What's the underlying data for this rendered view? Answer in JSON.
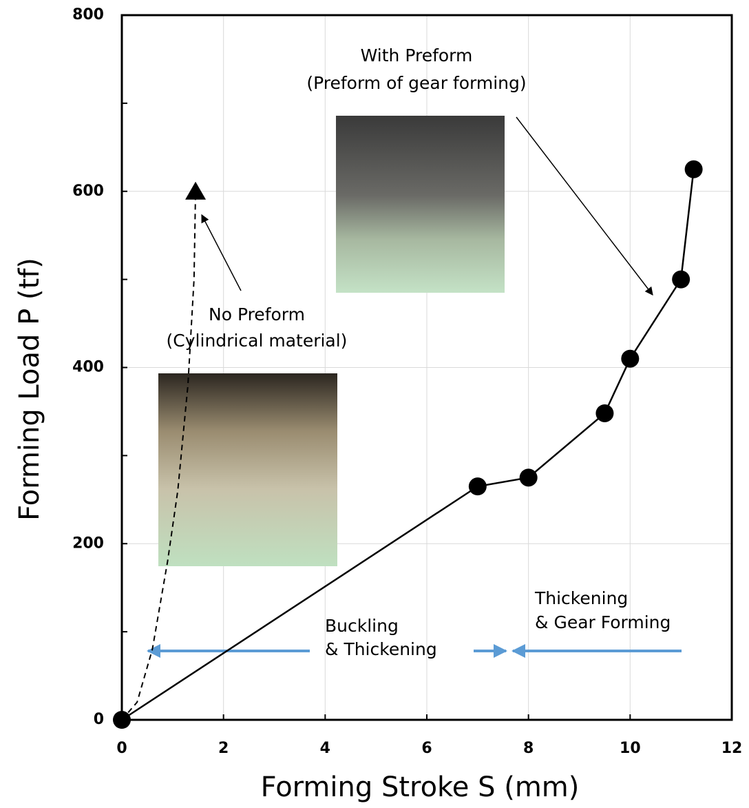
{
  "chart_data": {
    "type": "line",
    "x_label": "Forming Stroke S (mm)",
    "y_label": "Forming Load P (tf)",
    "xlim": [
      0,
      12
    ],
    "xticks": [
      0,
      2,
      4,
      6,
      8,
      10,
      12
    ],
    "ylim": [
      0,
      800
    ],
    "yticks": [
      0,
      200,
      400,
      600,
      800
    ],
    "yminorticks": [
      100,
      300,
      500,
      700
    ],
    "grid": true,
    "series": [
      {
        "x": [
          0,
          7,
          8,
          9.5,
          10,
          11,
          11.25
        ],
        "values": [
          0,
          265,
          275,
          348,
          410,
          500,
          625
        ],
        "color": "#000000",
        "dash": false,
        "marker": "circle"
      },
      {
        "x": [
          0,
          0.3,
          0.6,
          0.9,
          1.1,
          1.3,
          1.42,
          1.45
        ],
        "values": [
          0,
          20,
          80,
          180,
          260,
          380,
          500,
          600
        ],
        "color": "#000000",
        "dash": true,
        "marker": "triangle-end"
      }
    ],
    "annotations": [
      "With Preform",
      "(Preform of gear forming)",
      "No Preform",
      "(Cylindrical material)",
      "Buckling",
      "& Thickening",
      "Thickening",
      "& Gear Forming"
    ]
  }
}
